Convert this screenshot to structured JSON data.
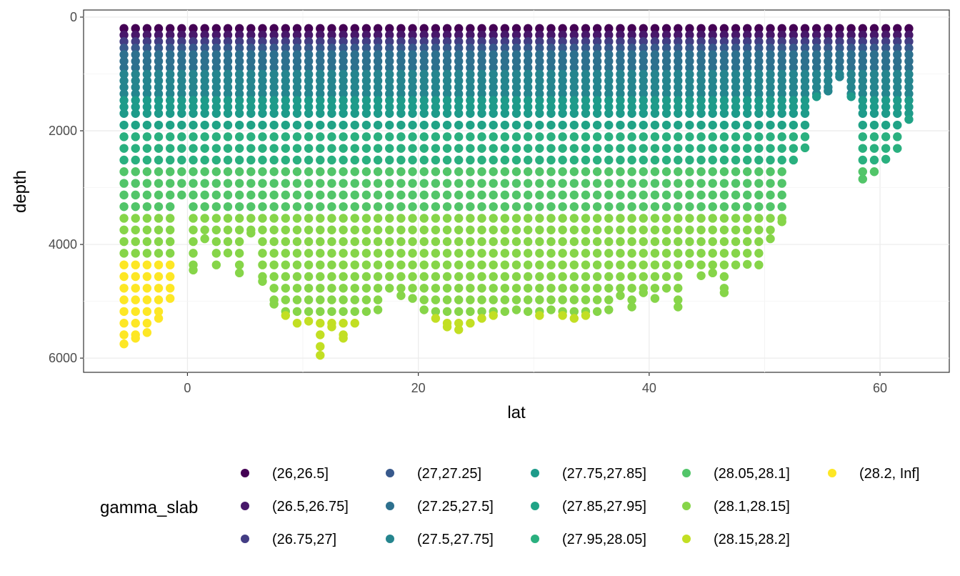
{
  "chart_data": {
    "type": "scatter",
    "title": "",
    "xlabel": "lat",
    "ylabel": "depth",
    "xlim": [
      -9,
      66
    ],
    "ylim": [
      6250,
      -125
    ],
    "x_ticks": [
      0,
      20,
      40,
      60
    ],
    "y_ticks": [
      0,
      2000,
      4000,
      6000
    ],
    "grid": true,
    "legend": {
      "title": "gamma_slab",
      "position": "bottom",
      "entries": [
        {
          "label": "(26,26.5]",
          "color": "#440154"
        },
        {
          "label": "(26.5,26.75]",
          "color": "#48186a"
        },
        {
          "label": "(26.75,27]",
          "color": "#433d84"
        },
        {
          "label": "(27,27.25]",
          "color": "#38598c"
        },
        {
          "label": "(27.25,27.5]",
          "color": "#2d708e"
        },
        {
          "label": "(27.5,27.75]",
          "color": "#25858e"
        },
        {
          "label": "(27.75,27.85]",
          "color": "#1e9b8a"
        },
        {
          "label": "(27.85,27.95]",
          "color": "#20a386"
        },
        {
          "label": "(27.95,28.05]",
          "color": "#2ab07f"
        },
        {
          "label": "(28.05,28.1]",
          "color": "#52c569"
        },
        {
          "label": "(28.1,28.15]",
          "color": "#86d549"
        },
        {
          "label": "(28.15,28.2]",
          "color": "#c2df23"
        },
        {
          "label": "(28.2, Inf]",
          "color": "#fde725"
        }
      ]
    },
    "stations": [
      [
        -5.5,
        5750
      ],
      [
        -4.5,
        5650
      ],
      [
        -3.5,
        5550
      ],
      [
        -2.5,
        5300
      ],
      [
        -1.5,
        4950
      ],
      [
        -0.5,
        3150
      ],
      [
        0.5,
        4450
      ],
      [
        1.5,
        3900
      ],
      [
        2.5,
        4400
      ],
      [
        3.5,
        4150
      ],
      [
        4.5,
        4500
      ],
      [
        5.5,
        3800
      ],
      [
        6.5,
        4650
      ],
      [
        7.5,
        5050
      ],
      [
        8.5,
        5250
      ],
      [
        9.5,
        5400
      ],
      [
        10.5,
        5350
      ],
      [
        11.5,
        5950
      ],
      [
        12.5,
        5450
      ],
      [
        13.5,
        5650
      ],
      [
        14.5,
        5400
      ],
      [
        15.5,
        5200
      ],
      [
        16.5,
        5150
      ],
      [
        17.5,
        4800
      ],
      [
        18.5,
        4900
      ],
      [
        19.5,
        4950
      ],
      [
        20.5,
        5150
      ],
      [
        21.5,
        5300
      ],
      [
        22.5,
        5450
      ],
      [
        23.5,
        5500
      ],
      [
        24.5,
        5400
      ],
      [
        25.5,
        5300
      ],
      [
        26.5,
        5250
      ],
      [
        27.5,
        5200
      ],
      [
        28.5,
        5150
      ],
      [
        29.5,
        5200
      ],
      [
        30.5,
        5250
      ],
      [
        31.5,
        5150
      ],
      [
        32.5,
        5250
      ],
      [
        33.5,
        5300
      ],
      [
        34.5,
        5250
      ],
      [
        35.5,
        5200
      ],
      [
        36.5,
        5150
      ],
      [
        37.5,
        4900
      ],
      [
        38.5,
        5100
      ],
      [
        39.5,
        4850
      ],
      [
        40.5,
        4950
      ],
      [
        41.5,
        4800
      ],
      [
        42.5,
        5100
      ],
      [
        43.5,
        4350
      ],
      [
        44.5,
        4550
      ],
      [
        45.5,
        4500
      ],
      [
        46.5,
        4850
      ],
      [
        47.5,
        4400
      ],
      [
        48.5,
        4350
      ],
      [
        49.5,
        4400
      ],
      [
        50.5,
        3900
      ],
      [
        51.5,
        3600
      ],
      [
        52.5,
        2550
      ],
      [
        53.5,
        2300
      ],
      [
        54.5,
        1400
      ],
      [
        55.5,
        1300
      ],
      [
        56.5,
        1050
      ],
      [
        57.5,
        1400
      ],
      [
        58.5,
        2850
      ],
      [
        59.5,
        2750
      ],
      [
        60.5,
        2500
      ],
      [
        61.5,
        2350
      ],
      [
        62.5,
        1800
      ]
    ],
    "sampling": {
      "top_depth": 200,
      "shallow_step": 115,
      "shallow_limit": 1600,
      "deep_step": 205
    },
    "density_classes": {
      "breaks_by_depth": [
        [
          250,
          "(26,26.5]"
        ],
        [
          330,
          "(26.5,26.75]"
        ],
        [
          450,
          "(26.75,27]"
        ],
        [
          650,
          "(27,27.25]"
        ],
        [
          1000,
          "(27.25,27.5]"
        ],
        [
          1350,
          "(27.5,27.75]"
        ],
        [
          1700,
          "(27.75,27.85]"
        ],
        [
          2100,
          "(27.85,27.95]"
        ],
        [
          2700,
          "(27.95,28.05]"
        ],
        [
          3500,
          "(28.05,28.1]"
        ],
        [
          5200,
          "(28.1,28.15]"
        ],
        [
          5600,
          "(28.15,28.2]"
        ]
      ],
      "southern_bottom_class": "(28.2, Inf]",
      "southern_lat_max": -1
    }
  }
}
